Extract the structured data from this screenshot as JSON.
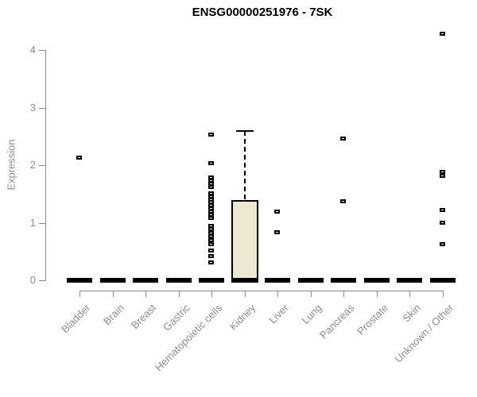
{
  "chart_data": {
    "type": "boxplot",
    "title": "ENSG00000251976 - 7SK",
    "xlabel": "",
    "ylabel": "Expression",
    "ylim": [
      0,
      4.3
    ],
    "yticks": [
      0,
      1,
      2,
      3,
      4
    ],
    "grid": false,
    "legend": false,
    "categories": [
      "Bladder",
      "Brain",
      "Breast",
      "Gastric",
      "Hematopoietic cells",
      "Kidney",
      "Liver",
      "Lung",
      "Pancreas",
      "Prostate",
      "Skin",
      "Unknown / Other"
    ],
    "boxes": [
      {
        "category": "Bladder",
        "median": 0,
        "q1": 0,
        "q3": 0,
        "whisker_low": 0,
        "whisker_high": 0,
        "outliers": [
          2.12
        ]
      },
      {
        "category": "Brain",
        "median": 0,
        "q1": 0,
        "q3": 0,
        "whisker_low": 0,
        "whisker_high": 0,
        "outliers": []
      },
      {
        "category": "Breast",
        "median": 0,
        "q1": 0,
        "q3": 0,
        "whisker_low": 0,
        "whisker_high": 0,
        "outliers": []
      },
      {
        "category": "Gastric",
        "median": 0,
        "q1": 0,
        "q3": 0,
        "whisker_low": 0,
        "whisker_high": 0,
        "outliers": []
      },
      {
        "category": "Hematopoietic cells",
        "median": 0,
        "q1": 0,
        "q3": 0,
        "whisker_low": 0,
        "whisker_high": 0,
        "outliers": [
          2.52,
          2.03,
          1.78,
          1.72,
          1.67,
          1.61,
          1.5,
          1.45,
          1.4,
          1.35,
          1.29,
          1.24,
          1.19,
          1.13,
          1.08,
          0.94,
          0.88,
          0.82,
          0.76,
          0.69,
          0.62,
          0.51,
          0.41,
          0.3
        ]
      },
      {
        "category": "Kidney",
        "median": 0,
        "q1": 0,
        "q3": 1.38,
        "whisker_low": 0,
        "whisker_high": 2.59,
        "outliers": []
      },
      {
        "category": "Liver",
        "median": 0,
        "q1": 0,
        "q3": 0,
        "whisker_low": 0,
        "whisker_high": 0,
        "outliers": [
          1.18,
          0.83
        ]
      },
      {
        "category": "Lung",
        "median": 0,
        "q1": 0,
        "q3": 0,
        "whisker_low": 0,
        "whisker_high": 0,
        "outliers": []
      },
      {
        "category": "Pancreas",
        "median": 0,
        "q1": 0,
        "q3": 0,
        "whisker_low": 0,
        "whisker_high": 0,
        "outliers": [
          2.46,
          1.36
        ]
      },
      {
        "category": "Prostate",
        "median": 0,
        "q1": 0,
        "q3": 0,
        "whisker_low": 0,
        "whisker_high": 0,
        "outliers": []
      },
      {
        "category": "Skin",
        "median": 0,
        "q1": 0,
        "q3": 0,
        "whisker_low": 0,
        "whisker_high": 0,
        "outliers": []
      },
      {
        "category": "Unknown / Other",
        "median": 0,
        "q1": 0,
        "q3": 0,
        "whisker_low": 0,
        "whisker_high": 0,
        "outliers": [
          4.28,
          1.87,
          1.81,
          1.22,
          0.99,
          0.62
        ]
      }
    ]
  },
  "colors": {
    "box_fill": "#EDE8D1",
    "box_border": "#000000",
    "marker": "#000000",
    "axis": "#8C8C8C",
    "tick_label": "#8C8C8C",
    "title": "#000000",
    "background": "#FFFFFF"
  }
}
